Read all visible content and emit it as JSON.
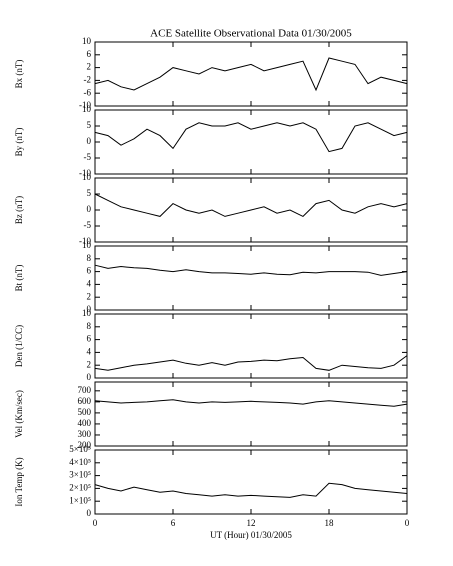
{
  "chart_data": [
    {
      "type": "line",
      "title": "ACE Satellite Observational Data   01/30/2005",
      "ylabel": "Bx (nT)",
      "x": [
        0,
        1,
        2,
        3,
        4,
        5,
        6,
        7,
        8,
        9,
        10,
        11,
        12,
        13,
        14,
        15,
        16,
        17,
        18,
        19,
        20,
        21,
        22,
        23,
        24
      ],
      "xlim": [
        0,
        24
      ],
      "ylim": [
        -10,
        10
      ],
      "yticks": [
        -10,
        -6,
        -2,
        2,
        6,
        10
      ],
      "color": "#000000",
      "values": [
        -3,
        -2,
        -4,
        -5,
        -3,
        -1,
        2,
        1,
        0,
        2,
        1,
        2,
        3,
        1,
        2,
        3,
        4,
        -5,
        5,
        4,
        3,
        -3,
        -1,
        -2,
        -3
      ]
    },
    {
      "type": "line",
      "ylabel": "By (nT)",
      "x": [
        0,
        1,
        2,
        3,
        4,
        5,
        6,
        7,
        8,
        9,
        10,
        11,
        12,
        13,
        14,
        15,
        16,
        17,
        18,
        19,
        20,
        21,
        22,
        23,
        24
      ],
      "xlim": [
        0,
        24
      ],
      "ylim": [
        -10,
        10
      ],
      "yticks": [
        -10,
        -5,
        0,
        5,
        10
      ],
      "color": "#000000",
      "values": [
        3,
        2,
        -1,
        1,
        4,
        2,
        -2,
        4,
        6,
        5,
        5,
        6,
        4,
        5,
        6,
        5,
        6,
        4,
        -3,
        -2,
        5,
        6,
        4,
        2,
        3
      ]
    },
    {
      "type": "line",
      "ylabel": "Bz (nT)",
      "x": [
        0,
        1,
        2,
        3,
        4,
        5,
        6,
        7,
        8,
        9,
        10,
        11,
        12,
        13,
        14,
        15,
        16,
        17,
        18,
        19,
        20,
        21,
        22,
        23,
        24
      ],
      "xlim": [
        0,
        24
      ],
      "ylim": [
        -10,
        10
      ],
      "yticks": [
        -10,
        -5,
        0,
        5,
        10
      ],
      "color": "#000000",
      "values": [
        5,
        3,
        1,
        0,
        -1,
        -2,
        2,
        0,
        -1,
        0,
        -2,
        -1,
        0,
        1,
        -1,
        0,
        -2,
        2,
        3,
        0,
        -1,
        1,
        2,
        1,
        2
      ]
    },
    {
      "type": "line",
      "ylabel": "Bt (nT)",
      "x": [
        0,
        1,
        2,
        3,
        4,
        5,
        6,
        7,
        8,
        9,
        10,
        11,
        12,
        13,
        14,
        15,
        16,
        17,
        18,
        19,
        20,
        21,
        22,
        23,
        24
      ],
      "xlim": [
        0,
        24
      ],
      "ylim": [
        0,
        10
      ],
      "yticks": [
        0,
        2,
        4,
        6,
        8,
        10
      ],
      "color": "#000000",
      "values": [
        7,
        6.5,
        6.8,
        6.6,
        6.5,
        6.2,
        6,
        6.3,
        6,
        5.8,
        5.8,
        5.7,
        5.6,
        5.8,
        5.6,
        5.5,
        5.9,
        5.8,
        6,
        6,
        6,
        5.9,
        5.4,
        5.7,
        6
      ]
    },
    {
      "type": "line",
      "ylabel": "Den (1/CC)",
      "x": [
        0,
        1,
        2,
        3,
        4,
        5,
        6,
        7,
        8,
        9,
        10,
        11,
        12,
        13,
        14,
        15,
        16,
        17,
        18,
        19,
        20,
        21,
        22,
        23,
        24
      ],
      "xlim": [
        0,
        24
      ],
      "ylim": [
        0,
        10
      ],
      "yticks": [
        0,
        2,
        4,
        6,
        8,
        10
      ],
      "color": "#000000",
      "values": [
        1.5,
        1.2,
        1.6,
        2,
        2.2,
        2.5,
        2.8,
        2.3,
        2,
        2.4,
        2,
        2.5,
        2.6,
        2.8,
        2.7,
        3,
        3.2,
        1.5,
        1.2,
        2,
        1.8,
        1.6,
        1.5,
        2,
        3.5
      ]
    },
    {
      "type": "line",
      "ylabel": "Vel (Km/sec)",
      "x": [
        0,
        1,
        2,
        3,
        4,
        5,
        6,
        7,
        8,
        9,
        10,
        11,
        12,
        13,
        14,
        15,
        16,
        17,
        18,
        19,
        20,
        21,
        22,
        23,
        24
      ],
      "xlim": [
        0,
        24
      ],
      "ylim": [
        200,
        780
      ],
      "yticks": [
        200,
        300,
        400,
        500,
        600,
        700
      ],
      "color": "#000000",
      "values": [
        610,
        600,
        590,
        595,
        600,
        610,
        620,
        600,
        590,
        600,
        595,
        600,
        605,
        600,
        595,
        590,
        580,
        600,
        610,
        600,
        590,
        580,
        570,
        560,
        580
      ]
    },
    {
      "type": "line",
      "ylabel": "Ion Temp (K)",
      "xlabel": "UT (Hour)  01/30/2005",
      "x": [
        0,
        1,
        2,
        3,
        4,
        5,
        6,
        7,
        8,
        9,
        10,
        11,
        12,
        13,
        14,
        15,
        16,
        17,
        18,
        19,
        20,
        21,
        22,
        23,
        24
      ],
      "xlim": [
        0,
        24
      ],
      "xticks": [
        0,
        6,
        12,
        18,
        {
          "value": 24,
          "label": "0"
        }
      ],
      "ylim": [
        0,
        500000
      ],
      "yticks": [
        0,
        {
          "value": 100000,
          "label": "1×10⁵"
        },
        {
          "value": 200000,
          "label": "2×10⁵"
        },
        {
          "value": 300000,
          "label": "3×10⁵"
        },
        {
          "value": 400000,
          "label": "4×10⁵"
        },
        {
          "value": 500000,
          "label": "5×10⁵"
        }
      ],
      "color": "#000000",
      "values": [
        230000,
        200000,
        180000,
        210000,
        190000,
        170000,
        180000,
        160000,
        150000,
        140000,
        150000,
        140000,
        145000,
        140000,
        135000,
        130000,
        150000,
        140000,
        240000,
        230000,
        200000,
        190000,
        180000,
        170000,
        160000
      ]
    }
  ]
}
